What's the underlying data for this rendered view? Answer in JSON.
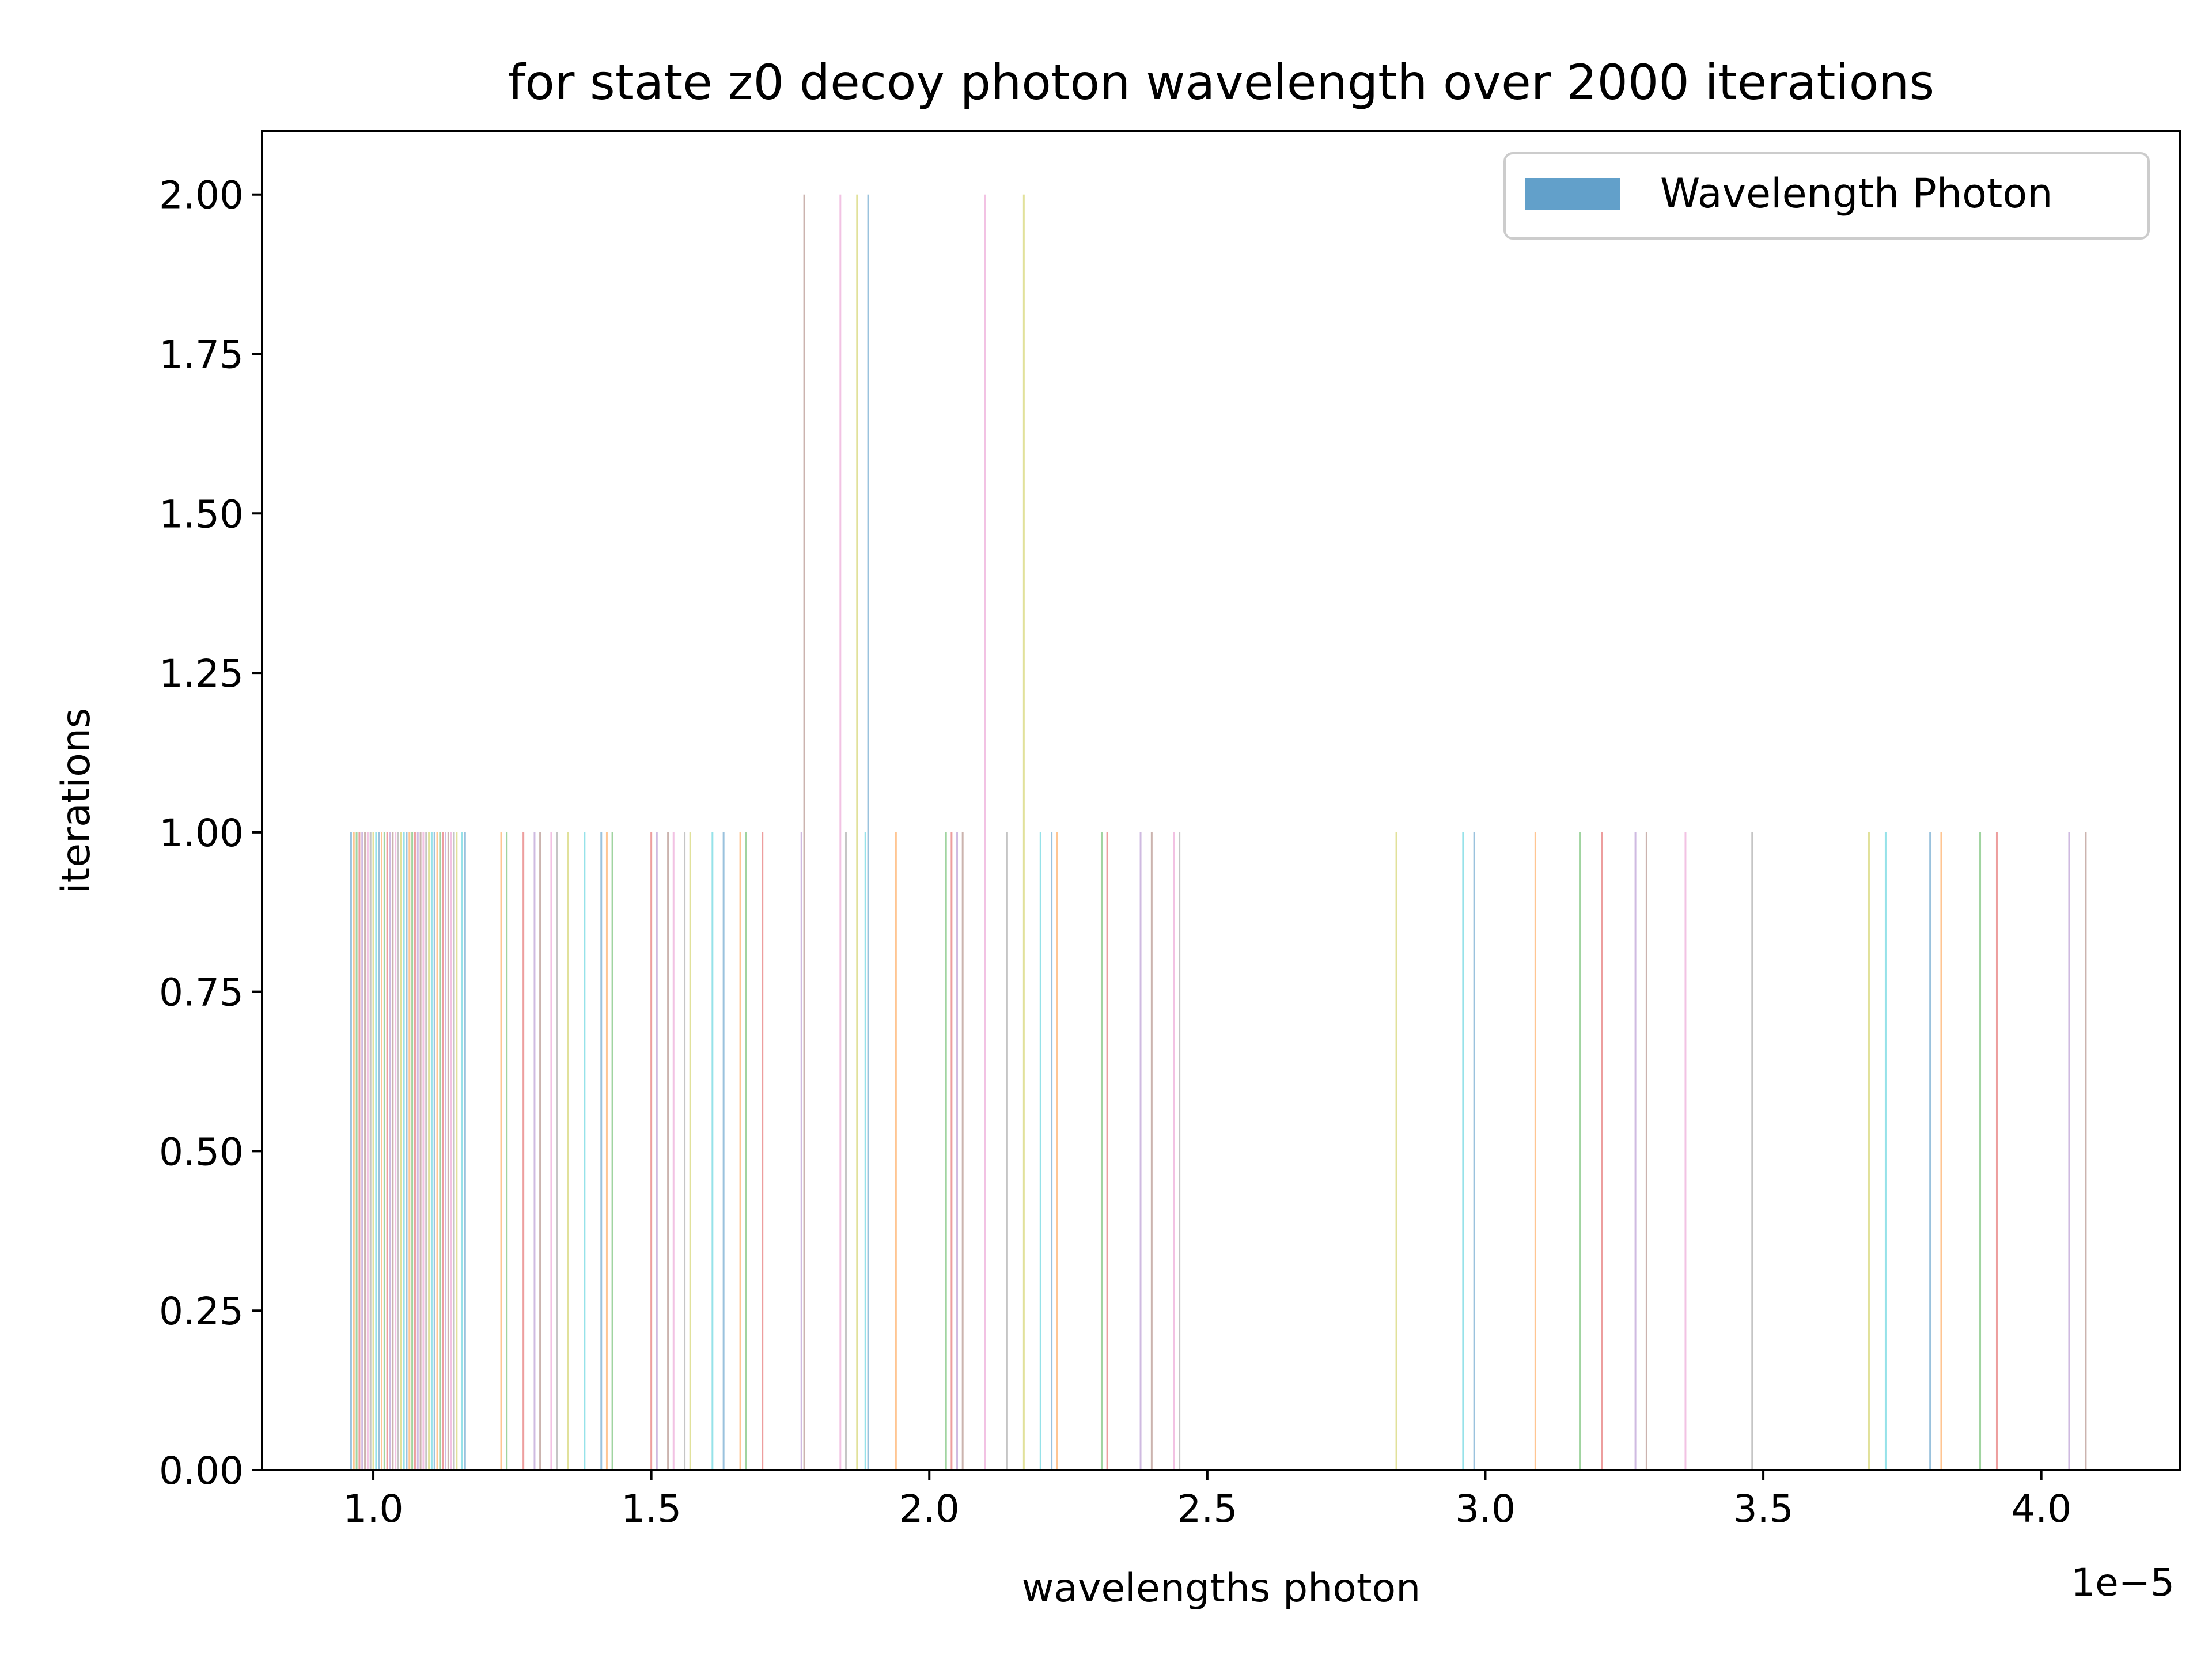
{
  "chart_data": {
    "type": "bar",
    "title": "for state z0 decoy photon wavelength over 2000 iterations",
    "xlabel": "wavelengths photon",
    "ylabel": "iterations",
    "x_offset_text": "1e−5",
    "xlim": [
      0.8,
      4.25
    ],
    "ylim": [
      0,
      2.1
    ],
    "xticks": [
      "1.0",
      "1.5",
      "2.0",
      "2.5",
      "3.0",
      "3.5",
      "4.0"
    ],
    "xtick_values": [
      1.0,
      1.5,
      2.0,
      2.5,
      3.0,
      3.5,
      4.0
    ],
    "yticks": [
      "0.00",
      "0.25",
      "0.50",
      "0.75",
      "1.00",
      "1.25",
      "1.50",
      "1.75",
      "2.00"
    ],
    "ytick_values": [
      0,
      0.25,
      0.5,
      0.75,
      1.0,
      1.25,
      1.5,
      1.75,
      2.0
    ],
    "grid": false,
    "legend": {
      "position": "top-right",
      "entries": [
        {
          "name": "Wavelength Photon",
          "color": "#1f77b4"
        }
      ]
    },
    "palette": [
      "#1f77b4",
      "#ff7f0e",
      "#2ca02c",
      "#d62728",
      "#9467bd",
      "#8c564b",
      "#e377c2",
      "#7f7f7f",
      "#bcbd22",
      "#17becf"
    ],
    "bars": [
      {
        "x": 0.96,
        "y": 1
      },
      {
        "x": 0.965,
        "y": 1
      },
      {
        "x": 0.97,
        "y": 1
      },
      {
        "x": 0.975,
        "y": 1
      },
      {
        "x": 0.98,
        "y": 1
      },
      {
        "x": 0.985,
        "y": 1
      },
      {
        "x": 0.99,
        "y": 1
      },
      {
        "x": 0.995,
        "y": 1
      },
      {
        "x": 1.0,
        "y": 1
      },
      {
        "x": 1.005,
        "y": 1
      },
      {
        "x": 1.01,
        "y": 1
      },
      {
        "x": 1.015,
        "y": 1
      },
      {
        "x": 1.02,
        "y": 1
      },
      {
        "x": 1.025,
        "y": 1
      },
      {
        "x": 1.03,
        "y": 1
      },
      {
        "x": 1.035,
        "y": 1
      },
      {
        "x": 1.04,
        "y": 1
      },
      {
        "x": 1.045,
        "y": 1
      },
      {
        "x": 1.05,
        "y": 1
      },
      {
        "x": 1.055,
        "y": 1
      },
      {
        "x": 1.06,
        "y": 1
      },
      {
        "x": 1.065,
        "y": 1
      },
      {
        "x": 1.07,
        "y": 1
      },
      {
        "x": 1.075,
        "y": 1
      },
      {
        "x": 1.08,
        "y": 1
      },
      {
        "x": 1.085,
        "y": 1
      },
      {
        "x": 1.09,
        "y": 1
      },
      {
        "x": 1.095,
        "y": 1
      },
      {
        "x": 1.1,
        "y": 1
      },
      {
        "x": 1.105,
        "y": 1
      },
      {
        "x": 1.11,
        "y": 1
      },
      {
        "x": 1.115,
        "y": 1
      },
      {
        "x": 1.12,
        "y": 1
      },
      {
        "x": 1.125,
        "y": 1
      },
      {
        "x": 1.13,
        "y": 1
      },
      {
        "x": 1.135,
        "y": 1
      },
      {
        "x": 1.14,
        "y": 1
      },
      {
        "x": 1.145,
        "y": 1
      },
      {
        "x": 1.15,
        "y": 1
      },
      {
        "x": 1.16,
        "y": 1
      },
      {
        "x": 1.165,
        "y": 1
      },
      {
        "x": 1.23,
        "y": 1
      },
      {
        "x": 1.24,
        "y": 1
      },
      {
        "x": 1.27,
        "y": 1
      },
      {
        "x": 1.29,
        "y": 1
      },
      {
        "x": 1.3,
        "y": 1
      },
      {
        "x": 1.32,
        "y": 1
      },
      {
        "x": 1.33,
        "y": 1
      },
      {
        "x": 1.35,
        "y": 1
      },
      {
        "x": 1.38,
        "y": 1
      },
      {
        "x": 1.41,
        "y": 1
      },
      {
        "x": 1.42,
        "y": 1
      },
      {
        "x": 1.43,
        "y": 1
      },
      {
        "x": 1.5,
        "y": 1
      },
      {
        "x": 1.51,
        "y": 1
      },
      {
        "x": 1.53,
        "y": 1
      },
      {
        "x": 1.54,
        "y": 1
      },
      {
        "x": 1.56,
        "y": 1
      },
      {
        "x": 1.57,
        "y": 1
      },
      {
        "x": 1.61,
        "y": 1
      },
      {
        "x": 1.63,
        "y": 1
      },
      {
        "x": 1.66,
        "y": 1
      },
      {
        "x": 1.67,
        "y": 1
      },
      {
        "x": 1.7,
        "y": 1
      },
      {
        "x": 1.77,
        "y": 1
      },
      {
        "x": 1.775,
        "y": 2
      },
      {
        "x": 1.84,
        "y": 2
      },
      {
        "x": 1.85,
        "y": 1
      },
      {
        "x": 1.87,
        "y": 2
      },
      {
        "x": 1.885,
        "y": 1
      },
      {
        "x": 1.89,
        "y": 2
      },
      {
        "x": 1.94,
        "y": 1
      },
      {
        "x": 2.03,
        "y": 1
      },
      {
        "x": 2.04,
        "y": 1
      },
      {
        "x": 2.05,
        "y": 1
      },
      {
        "x": 2.06,
        "y": 1
      },
      {
        "x": 2.1,
        "y": 2
      },
      {
        "x": 2.14,
        "y": 1
      },
      {
        "x": 2.17,
        "y": 2
      },
      {
        "x": 2.2,
        "y": 1
      },
      {
        "x": 2.22,
        "y": 1
      },
      {
        "x": 2.23,
        "y": 1
      },
      {
        "x": 2.31,
        "y": 1
      },
      {
        "x": 2.32,
        "y": 1
      },
      {
        "x": 2.38,
        "y": 1
      },
      {
        "x": 2.4,
        "y": 1
      },
      {
        "x": 2.44,
        "y": 1
      },
      {
        "x": 2.45,
        "y": 1
      },
      {
        "x": 2.84,
        "y": 1
      },
      {
        "x": 2.96,
        "y": 1
      },
      {
        "x": 2.98,
        "y": 1
      },
      {
        "x": 3.09,
        "y": 1
      },
      {
        "x": 3.17,
        "y": 1
      },
      {
        "x": 3.21,
        "y": 1
      },
      {
        "x": 3.27,
        "y": 1
      },
      {
        "x": 3.29,
        "y": 1
      },
      {
        "x": 3.36,
        "y": 1
      },
      {
        "x": 3.48,
        "y": 1
      },
      {
        "x": 3.69,
        "y": 1
      },
      {
        "x": 3.72,
        "y": 1
      },
      {
        "x": 3.8,
        "y": 1
      },
      {
        "x": 3.82,
        "y": 1
      },
      {
        "x": 3.89,
        "y": 1
      },
      {
        "x": 3.92,
        "y": 1
      },
      {
        "x": 4.05,
        "y": 1
      },
      {
        "x": 4.08,
        "y": 1
      }
    ]
  }
}
